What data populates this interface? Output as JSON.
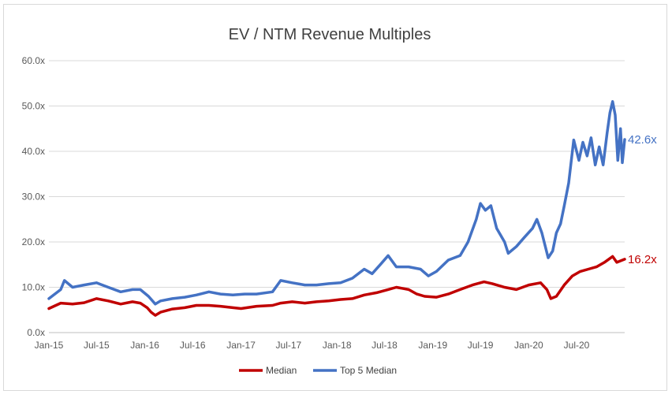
{
  "chart_data": {
    "type": "line",
    "title": "EV / NTM Revenue Multiples",
    "xlabel": "",
    "ylabel": "",
    "ylim": [
      0,
      60
    ],
    "yticks": [
      "0.0x",
      "10.0x",
      "20.0x",
      "30.0x",
      "40.0x",
      "50.0x",
      "60.0x"
    ],
    "xticks": [
      "Jan-15",
      "Jul-15",
      "Jan-16",
      "Jul-16",
      "Jan-17",
      "Jul-17",
      "Jan-18",
      "Jul-18",
      "Jan-19",
      "Jul-19",
      "Jan-20",
      "Jul-20"
    ],
    "grid": true,
    "legend_position": "bottom",
    "series": [
      {
        "name": "Median",
        "color": "#c00000",
        "end_label": "16.2x",
        "points": [
          [
            "2015-01-01",
            5.3
          ],
          [
            "2015-02-15",
            6.5
          ],
          [
            "2015-04-01",
            6.3
          ],
          [
            "2015-05-15",
            6.6
          ],
          [
            "2015-07-01",
            7.5
          ],
          [
            "2015-08-15",
            7.0
          ],
          [
            "2015-10-01",
            6.3
          ],
          [
            "2015-11-15",
            6.8
          ],
          [
            "2015-12-15",
            6.5
          ],
          [
            "2016-01-10",
            5.5
          ],
          [
            "2016-01-25",
            4.5
          ],
          [
            "2016-02-10",
            3.8
          ],
          [
            "2016-03-01",
            4.5
          ],
          [
            "2016-04-15",
            5.2
          ],
          [
            "2016-06-01",
            5.5
          ],
          [
            "2016-07-15",
            6.0
          ],
          [
            "2016-09-01",
            6.0
          ],
          [
            "2016-10-15",
            5.8
          ],
          [
            "2016-12-01",
            5.5
          ],
          [
            "2017-01-01",
            5.3
          ],
          [
            "2017-03-01",
            5.8
          ],
          [
            "2017-05-01",
            6.0
          ],
          [
            "2017-06-01",
            6.5
          ],
          [
            "2017-07-15",
            6.8
          ],
          [
            "2017-09-01",
            6.5
          ],
          [
            "2017-10-15",
            6.8
          ],
          [
            "2017-12-01",
            7.0
          ],
          [
            "2018-01-15",
            7.3
          ],
          [
            "2018-03-01",
            7.5
          ],
          [
            "2018-04-15",
            8.3
          ],
          [
            "2018-06-01",
            8.8
          ],
          [
            "2018-07-15",
            9.5
          ],
          [
            "2018-08-15",
            10.0
          ],
          [
            "2018-10-01",
            9.5
          ],
          [
            "2018-11-01",
            8.5
          ],
          [
            "2018-12-01",
            8.0
          ],
          [
            "2019-01-15",
            7.8
          ],
          [
            "2019-03-01",
            8.5
          ],
          [
            "2019-04-15",
            9.5
          ],
          [
            "2019-06-01",
            10.5
          ],
          [
            "2019-07-15",
            11.2
          ],
          [
            "2019-08-15",
            10.8
          ],
          [
            "2019-10-01",
            10.0
          ],
          [
            "2019-11-15",
            9.5
          ],
          [
            "2020-01-01",
            10.5
          ],
          [
            "2020-02-15",
            11.0
          ],
          [
            "2020-03-10",
            9.5
          ],
          [
            "2020-03-25",
            7.5
          ],
          [
            "2020-04-15",
            8.0
          ],
          [
            "2020-05-15",
            10.5
          ],
          [
            "2020-06-15",
            12.5
          ],
          [
            "2020-07-15",
            13.5
          ],
          [
            "2020-08-15",
            14.0
          ],
          [
            "2020-09-15",
            14.5
          ],
          [
            "2020-10-15",
            15.5
          ],
          [
            "2020-11-15",
            16.8
          ],
          [
            "2020-12-01",
            15.5
          ],
          [
            "2020-12-31",
            16.2
          ]
        ]
      },
      {
        "name": "Top 5 Median",
        "color": "#4472c4",
        "end_label": "42.6x",
        "points": [
          [
            "2015-01-01",
            7.5
          ],
          [
            "2015-02-15",
            9.5
          ],
          [
            "2015-03-01",
            11.5
          ],
          [
            "2015-04-01",
            10.0
          ],
          [
            "2015-05-15",
            10.5
          ],
          [
            "2015-07-01",
            11.0
          ],
          [
            "2015-08-15",
            10.0
          ],
          [
            "2015-10-01",
            9.0
          ],
          [
            "2015-11-15",
            9.5
          ],
          [
            "2015-12-15",
            9.5
          ],
          [
            "2016-01-15",
            8.0
          ],
          [
            "2016-02-10",
            6.3
          ],
          [
            "2016-03-01",
            7.0
          ],
          [
            "2016-04-15",
            7.5
          ],
          [
            "2016-06-01",
            7.8
          ],
          [
            "2016-07-15",
            8.3
          ],
          [
            "2016-09-01",
            9.0
          ],
          [
            "2016-10-15",
            8.5
          ],
          [
            "2016-12-01",
            8.3
          ],
          [
            "2017-01-15",
            8.5
          ],
          [
            "2017-03-01",
            8.5
          ],
          [
            "2017-05-01",
            9.0
          ],
          [
            "2017-06-01",
            11.5
          ],
          [
            "2017-07-15",
            11.0
          ],
          [
            "2017-09-01",
            10.5
          ],
          [
            "2017-10-15",
            10.5
          ],
          [
            "2017-12-01",
            10.8
          ],
          [
            "2018-01-15",
            11.0
          ],
          [
            "2018-03-01",
            12.0
          ],
          [
            "2018-04-15",
            14.0
          ],
          [
            "2018-05-15",
            13.0
          ],
          [
            "2018-06-15",
            15.0
          ],
          [
            "2018-07-15",
            17.0
          ],
          [
            "2018-08-15",
            14.5
          ],
          [
            "2018-10-01",
            14.5
          ],
          [
            "2018-11-15",
            14.0
          ],
          [
            "2018-12-15",
            12.5
          ],
          [
            "2019-01-15",
            13.5
          ],
          [
            "2019-03-01",
            16.0
          ],
          [
            "2019-04-15",
            17.0
          ],
          [
            "2019-05-15",
            20.0
          ],
          [
            "2019-06-15",
            25.0
          ],
          [
            "2019-07-01",
            28.5
          ],
          [
            "2019-07-20",
            27.0
          ],
          [
            "2019-08-10",
            28.0
          ],
          [
            "2019-09-01",
            23.0
          ],
          [
            "2019-10-01",
            20.0
          ],
          [
            "2019-10-15",
            17.5
          ],
          [
            "2019-11-15",
            19.0
          ],
          [
            "2019-12-15",
            21.0
          ],
          [
            "2020-01-15",
            23.0
          ],
          [
            "2020-02-01",
            25.0
          ],
          [
            "2020-02-20",
            22.0
          ],
          [
            "2020-03-15",
            16.5
          ],
          [
            "2020-04-01",
            18.0
          ],
          [
            "2020-04-15",
            22.0
          ],
          [
            "2020-05-01",
            24.0
          ],
          [
            "2020-05-15",
            28.0
          ],
          [
            "2020-06-01",
            33.0
          ],
          [
            "2020-06-20",
            42.5
          ],
          [
            "2020-07-10",
            38.0
          ],
          [
            "2020-07-25",
            42.0
          ],
          [
            "2020-08-10",
            39.0
          ],
          [
            "2020-08-25",
            43.0
          ],
          [
            "2020-09-10",
            37.0
          ],
          [
            "2020-09-25",
            41.0
          ],
          [
            "2020-10-10",
            37.0
          ],
          [
            "2020-10-25",
            44.0
          ],
          [
            "2020-11-05",
            48.5
          ],
          [
            "2020-11-15",
            51.0
          ],
          [
            "2020-11-25",
            48.0
          ],
          [
            "2020-12-05",
            38.0
          ],
          [
            "2020-12-15",
            45.0
          ],
          [
            "2020-12-22",
            37.5
          ],
          [
            "2020-12-31",
            42.6
          ]
        ]
      }
    ]
  }
}
